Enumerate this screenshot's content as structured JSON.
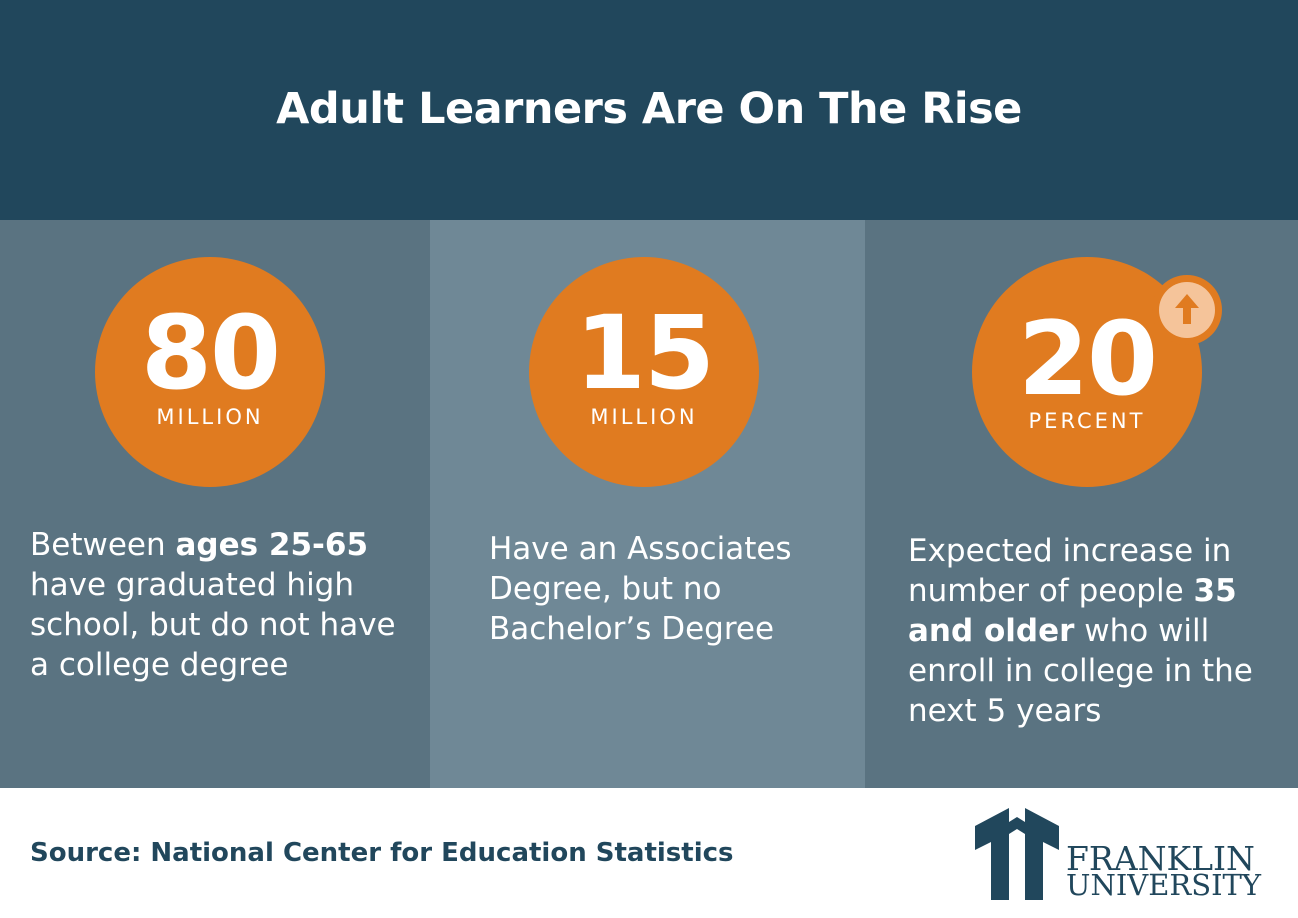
{
  "header": {
    "title": "Adult Learners Are On The Rise"
  },
  "stats": [
    {
      "value": "80",
      "unit": "MILLION",
      "desc_pre": "Between ",
      "desc_bold": "ages 25-65",
      "desc_post": " have graduated high school, but do not have a college degree"
    },
    {
      "value": "15",
      "unit": "MILLION",
      "desc_pre": "Have an Associates Degree, but no Bachelor’s Degree"
    },
    {
      "value": "20",
      "unit": "PERCENT",
      "desc_pre": "Expected increase in number of people ",
      "desc_bold": "35 and older",
      "desc_post": " who will enroll in college in the next 5 years",
      "badge_icon": "arrow-up-icon"
    }
  ],
  "footer": {
    "source": "Source: National Center for Education Statistics",
    "logo_line1": "FRANKLIN",
    "logo_line2": "UNIVERSITY"
  },
  "colors": {
    "header_bg": "#21475c",
    "panel_dark": "#5a7381",
    "panel_light": "#6f8896",
    "accent_orange": "#e07b20",
    "badge_light": "#f5c49a"
  }
}
